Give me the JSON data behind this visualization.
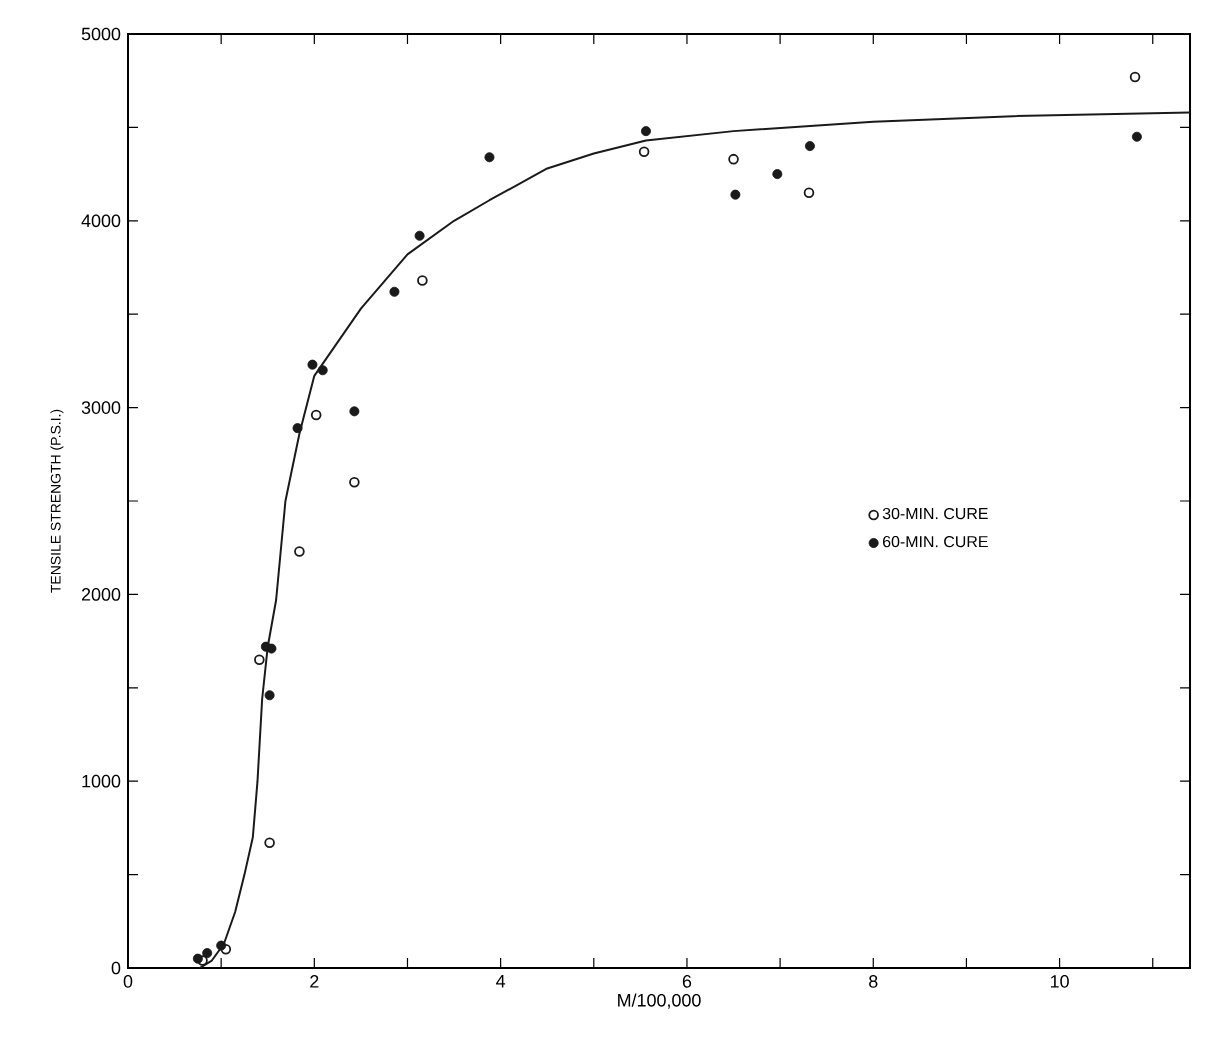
{
  "chart_data": {
    "type": "scatter",
    "xlabel": "M/100,000",
    "ylabel": "TENSILE STRENGTH (P.S.I.)",
    "xlim": [
      0,
      11.4
    ],
    "ylim": [
      0,
      5000
    ],
    "xticks": [
      0,
      {
        "value": 1,
        "label": null
      },
      2,
      {
        "value": 3,
        "label": null
      },
      4,
      {
        "value": 5,
        "label": null
      },
      6,
      {
        "value": 7,
        "label": null
      },
      8,
      {
        "value": 9,
        "label": null
      },
      10,
      {
        "value": 11,
        "label": null
      }
    ],
    "yticks": [
      0,
      {
        "value": 500,
        "label": null
      },
      1000,
      {
        "value": 1500,
        "label": null
      },
      2000,
      {
        "value": 2500,
        "label": null
      },
      3000,
      {
        "value": 3500,
        "label": null
      },
      4000,
      {
        "value": 4500,
        "label": null
      },
      5000
    ],
    "grid": false,
    "legend": "right",
    "series": [
      {
        "name": "30-MIN. CURE",
        "marker": "circle_open",
        "color": "#1a1a1a",
        "x": [
          0.8,
          1.05,
          1.52,
          1.41,
          1.84,
          2.43,
          2.02,
          3.16,
          5.54,
          6.5,
          7.31,
          10.81
        ],
        "values": [
          40,
          100,
          670,
          1650,
          2230,
          2600,
          2960,
          3680,
          4370,
          4330,
          4150,
          4770
        ]
      },
      {
        "name": "60-MIN. CURE",
        "marker": "circle",
        "color": "#1a1a1a",
        "x": [
          0.75,
          0.85,
          1.0,
          1.52,
          1.48,
          1.54,
          1.82,
          2.43,
          1.98,
          2.09,
          2.86,
          3.13,
          3.88,
          5.56,
          6.52,
          6.97,
          7.32,
          10.83
        ],
        "values": [
          50,
          80,
          120,
          1460,
          1720,
          1710,
          2890,
          2980,
          3230,
          3200,
          3620,
          3920,
          4340,
          4480,
          4140,
          4250,
          4400,
          4450
        ]
      },
      {
        "type": "line",
        "marker": "none",
        "line_style": "solid",
        "color": "#1a1a1a",
        "x": [
          0.77,
          0.9,
          1.03,
          1.15,
          1.25,
          1.34,
          1.39,
          1.44,
          1.5,
          1.59,
          1.69,
          1.84,
          2.0,
          2.5,
          3.0,
          3.5,
          3.88,
          4.5,
          5.0,
          5.56,
          6.5,
          8.0,
          9.5,
          11.4
        ],
        "values": [
          0,
          40,
          130,
          300,
          500,
          700,
          1000,
          1440,
          1720,
          1970,
          2500,
          2860,
          3170,
          3530,
          3820,
          4000,
          4110,
          4280,
          4360,
          4430,
          4480,
          4530,
          4560,
          4580
        ]
      }
    ]
  }
}
